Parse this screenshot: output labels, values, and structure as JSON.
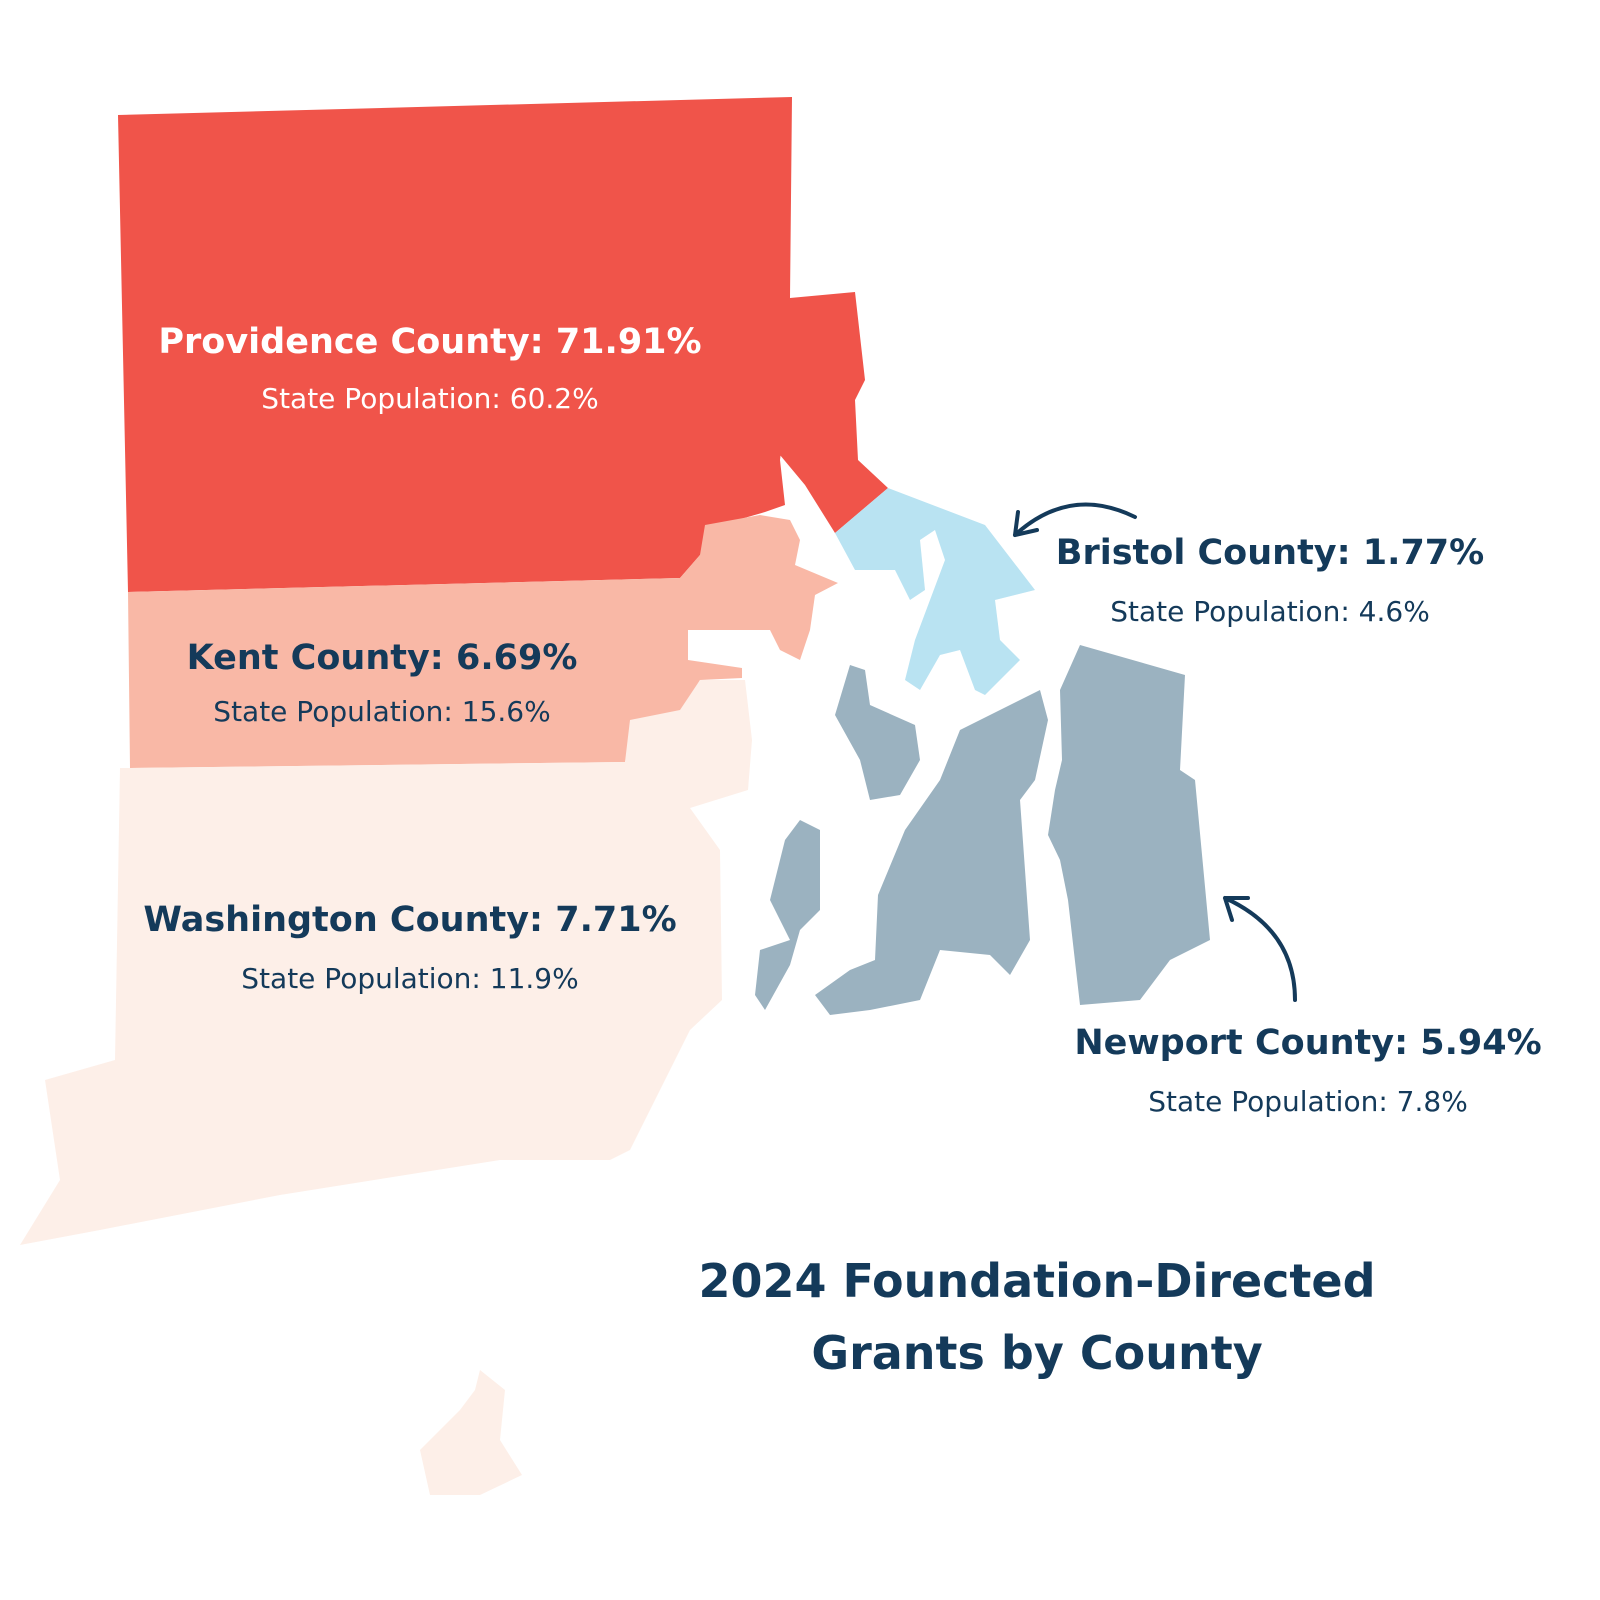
{
  "title": "2024 Foundation-Directed Grants by County",
  "counties": [
    {
      "label": "Providence County: 71.91%",
      "population": "State Population: 60.2%"
    },
    {
      "label": "Kent County: 6.69%",
      "population": "State Population: 15.6%"
    },
    {
      "label": "Washington County: 7.71%",
      "population": "State Population: 11.9%"
    },
    {
      "label": "Bristol County: 1.77%",
      "population": "State Population: 4.6%"
    },
    {
      "label": "Newport County: 5.94%",
      "population": "State Population: 7.8%"
    }
  ]
}
